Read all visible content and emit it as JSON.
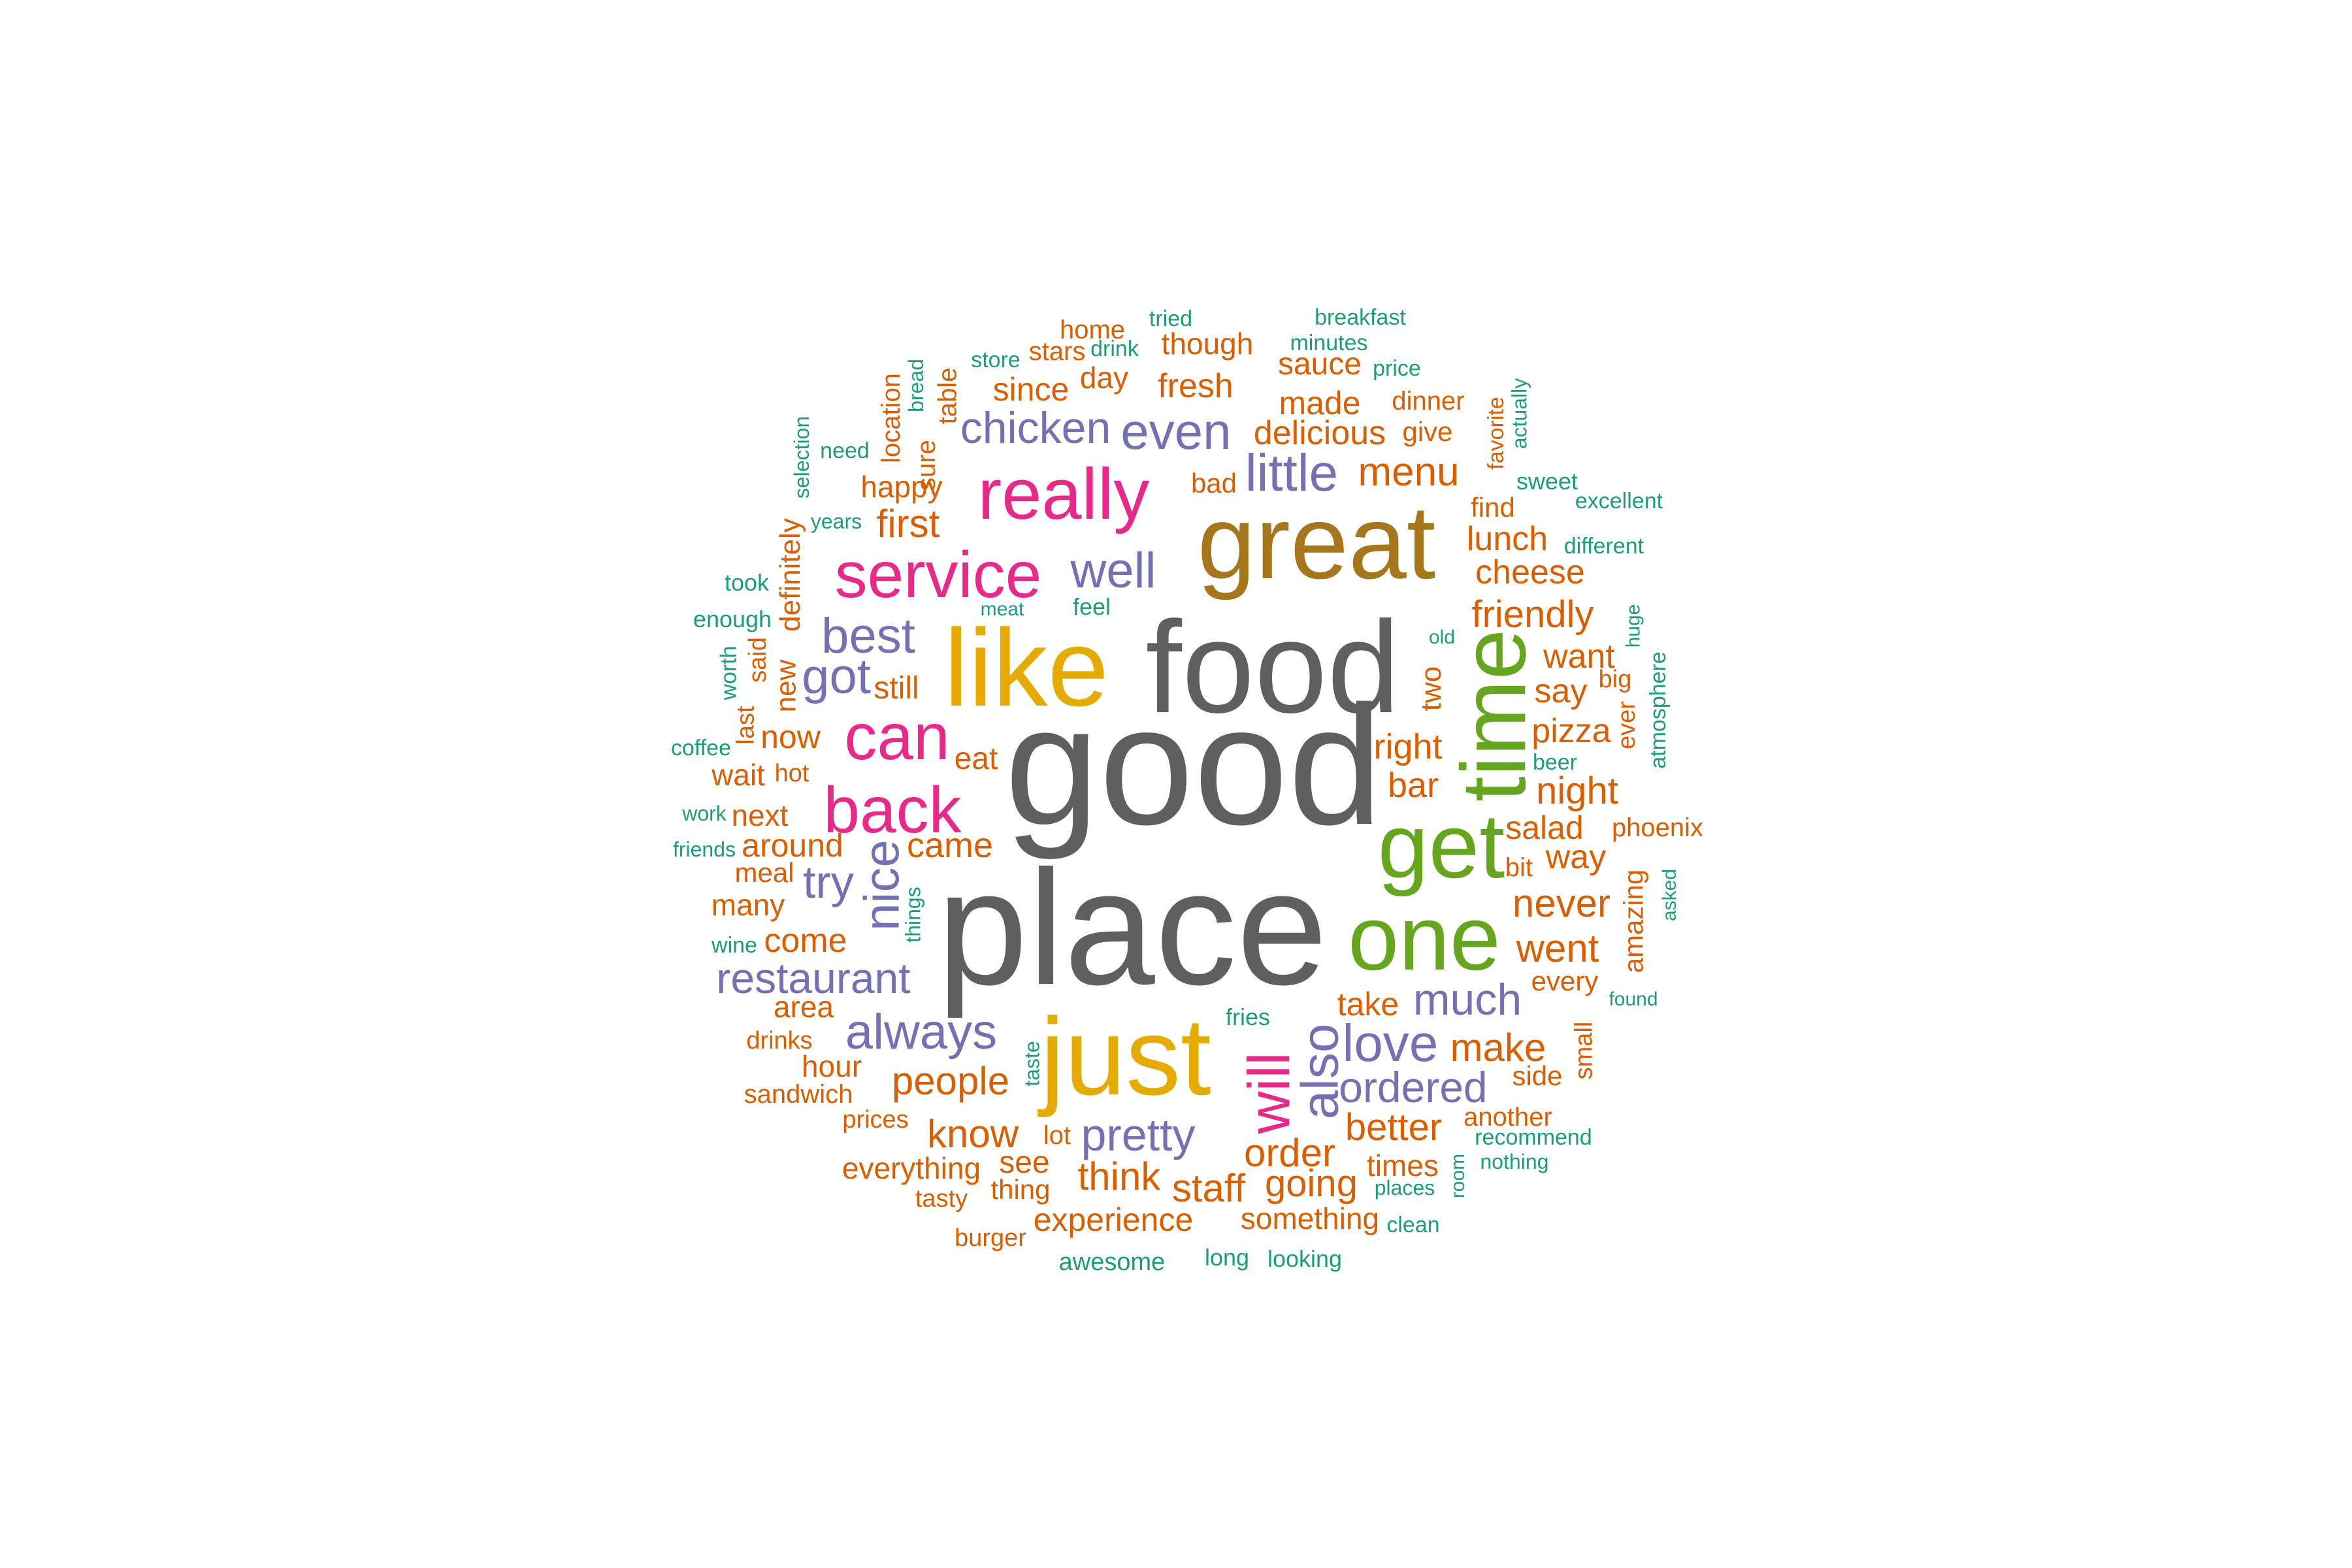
{
  "colors": {
    "gray": "#5f5f5f",
    "olive": "#a6761d",
    "gold": "#e6ab02",
    "pink": "#e7298a",
    "green": "#66a61e",
    "purple": "#7570b3",
    "orange": "#d95f02",
    "teal": "#1b9e77"
  },
  "words": [
    {
      "text": "good",
      "color": "gray"
    },
    {
      "text": "place",
      "color": "gray"
    },
    {
      "text": "food",
      "color": "gray"
    },
    {
      "text": "great",
      "color": "olive"
    },
    {
      "text": "like",
      "color": "gold"
    },
    {
      "text": "just",
      "color": "gold"
    },
    {
      "text": "really",
      "color": "pink"
    },
    {
      "text": "service",
      "color": "pink"
    },
    {
      "text": "can",
      "color": "pink"
    },
    {
      "text": "back",
      "color": "pink"
    },
    {
      "text": "will",
      "color": "pink"
    },
    {
      "text": "get",
      "color": "green"
    },
    {
      "text": "time",
      "color": "green"
    },
    {
      "text": "one",
      "color": "green"
    },
    {
      "text": "chicken",
      "color": "purple"
    },
    {
      "text": "even",
      "color": "purple"
    },
    {
      "text": "little",
      "color": "purple"
    },
    {
      "text": "well",
      "color": "purple"
    },
    {
      "text": "best",
      "color": "purple"
    },
    {
      "text": "got",
      "color": "purple"
    },
    {
      "text": "nice",
      "color": "purple"
    },
    {
      "text": "try",
      "color": "purple"
    },
    {
      "text": "restaurant",
      "color": "purple"
    },
    {
      "text": "always",
      "color": "purple"
    },
    {
      "text": "also",
      "color": "purple"
    },
    {
      "text": "love",
      "color": "purple"
    },
    {
      "text": "much",
      "color": "purple"
    },
    {
      "text": "ordered",
      "color": "purple"
    },
    {
      "text": "pretty",
      "color": "purple"
    },
    {
      "text": "home",
      "color": "orange"
    },
    {
      "text": "though",
      "color": "orange"
    },
    {
      "text": "stars",
      "color": "orange"
    },
    {
      "text": "day",
      "color": "orange"
    },
    {
      "text": "since",
      "color": "orange"
    },
    {
      "text": "fresh",
      "color": "orange"
    },
    {
      "text": "sauce",
      "color": "orange"
    },
    {
      "text": "made",
      "color": "orange"
    },
    {
      "text": "dinner",
      "color": "orange"
    },
    {
      "text": "give",
      "color": "orange"
    },
    {
      "text": "delicious",
      "color": "orange"
    },
    {
      "text": "menu",
      "color": "orange"
    },
    {
      "text": "bad",
      "color": "orange"
    },
    {
      "text": "happy",
      "color": "orange"
    },
    {
      "text": "first",
      "color": "orange"
    },
    {
      "text": "find",
      "color": "orange"
    },
    {
      "text": "lunch",
      "color": "orange"
    },
    {
      "text": "cheese",
      "color": "orange"
    },
    {
      "text": "friendly",
      "color": "orange"
    },
    {
      "text": "want",
      "color": "orange"
    },
    {
      "text": "say",
      "color": "orange"
    },
    {
      "text": "pizza",
      "color": "orange"
    },
    {
      "text": "night",
      "color": "orange"
    },
    {
      "text": "salad",
      "color": "orange"
    },
    {
      "text": "way",
      "color": "orange"
    },
    {
      "text": "bit",
      "color": "orange"
    },
    {
      "text": "never",
      "color": "orange"
    },
    {
      "text": "went",
      "color": "orange"
    },
    {
      "text": "every",
      "color": "orange"
    },
    {
      "text": "make",
      "color": "orange"
    },
    {
      "text": "side",
      "color": "orange"
    },
    {
      "text": "another",
      "color": "orange"
    },
    {
      "text": "better",
      "color": "orange"
    },
    {
      "text": "times",
      "color": "orange"
    },
    {
      "text": "take",
      "color": "orange"
    },
    {
      "text": "order",
      "color": "orange"
    },
    {
      "text": "going",
      "color": "orange"
    },
    {
      "text": "something",
      "color": "orange"
    },
    {
      "text": "staff",
      "color": "orange"
    },
    {
      "text": "think",
      "color": "orange"
    },
    {
      "text": "experience",
      "color": "orange"
    },
    {
      "text": "know",
      "color": "orange"
    },
    {
      "text": "see",
      "color": "orange"
    },
    {
      "text": "thing",
      "color": "orange"
    },
    {
      "text": "lot",
      "color": "orange"
    },
    {
      "text": "people",
      "color": "orange"
    },
    {
      "text": "everything",
      "color": "orange"
    },
    {
      "text": "tasty",
      "color": "orange"
    },
    {
      "text": "burger",
      "color": "orange"
    },
    {
      "text": "prices",
      "color": "orange"
    },
    {
      "text": "sandwich",
      "color": "orange"
    },
    {
      "text": "hour",
      "color": "orange"
    },
    {
      "text": "drinks",
      "color": "orange"
    },
    {
      "text": "area",
      "color": "orange"
    },
    {
      "text": "come",
      "color": "orange"
    },
    {
      "text": "many",
      "color": "orange"
    },
    {
      "text": "meal",
      "color": "orange"
    },
    {
      "text": "around",
      "color": "orange"
    },
    {
      "text": "next",
      "color": "orange"
    },
    {
      "text": "came",
      "color": "orange"
    },
    {
      "text": "eat",
      "color": "orange"
    },
    {
      "text": "wait",
      "color": "orange"
    },
    {
      "text": "hot",
      "color": "orange"
    },
    {
      "text": "now",
      "color": "orange"
    },
    {
      "text": "still",
      "color": "orange"
    },
    {
      "text": "right",
      "color": "orange"
    },
    {
      "text": "bar",
      "color": "orange"
    },
    {
      "text": "phoenix",
      "color": "orange"
    },
    {
      "text": "location",
      "color": "orange"
    },
    {
      "text": "sure",
      "color": "orange"
    },
    {
      "text": "table",
      "color": "orange"
    },
    {
      "text": "favorite",
      "color": "orange"
    },
    {
      "text": "definitely",
      "color": "orange"
    },
    {
      "text": "said",
      "color": "orange"
    },
    {
      "text": "new",
      "color": "orange"
    },
    {
      "text": "last",
      "color": "orange"
    },
    {
      "text": "two",
      "color": "orange"
    },
    {
      "text": "big",
      "color": "orange"
    },
    {
      "text": "ever",
      "color": "orange"
    },
    {
      "text": "amazing",
      "color": "orange"
    },
    {
      "text": "small",
      "color": "orange"
    },
    {
      "text": "breakfast",
      "color": "teal"
    },
    {
      "text": "tried",
      "color": "teal"
    },
    {
      "text": "minutes",
      "color": "teal"
    },
    {
      "text": "drink",
      "color": "teal"
    },
    {
      "text": "store",
      "color": "teal"
    },
    {
      "text": "price",
      "color": "teal"
    },
    {
      "text": "bread",
      "color": "teal"
    },
    {
      "text": "actually",
      "color": "teal"
    },
    {
      "text": "sweet",
      "color": "teal"
    },
    {
      "text": "excellent",
      "color": "teal"
    },
    {
      "text": "need",
      "color": "teal"
    },
    {
      "text": "selection",
      "color": "teal"
    },
    {
      "text": "years",
      "color": "teal"
    },
    {
      "text": "different",
      "color": "teal"
    },
    {
      "text": "took",
      "color": "teal"
    },
    {
      "text": "meat",
      "color": "teal"
    },
    {
      "text": "feel",
      "color": "teal"
    },
    {
      "text": "enough",
      "color": "teal"
    },
    {
      "text": "old",
      "color": "teal"
    },
    {
      "text": "huge",
      "color": "teal"
    },
    {
      "text": "worth",
      "color": "teal"
    },
    {
      "text": "atmosphere",
      "color": "teal"
    },
    {
      "text": "coffee",
      "color": "teal"
    },
    {
      "text": "beer",
      "color": "teal"
    },
    {
      "text": "work",
      "color": "teal"
    },
    {
      "text": "friends",
      "color": "teal"
    },
    {
      "text": "things",
      "color": "teal"
    },
    {
      "text": "asked",
      "color": "teal"
    },
    {
      "text": "wine",
      "color": "teal"
    },
    {
      "text": "found",
      "color": "teal"
    },
    {
      "text": "fries",
      "color": "teal"
    },
    {
      "text": "taste",
      "color": "teal"
    },
    {
      "text": "recommend",
      "color": "teal"
    },
    {
      "text": "nothing",
      "color": "teal"
    },
    {
      "text": "room",
      "color": "teal"
    },
    {
      "text": "places",
      "color": "teal"
    },
    {
      "text": "clean",
      "color": "teal"
    },
    {
      "text": "awesome",
      "color": "teal"
    },
    {
      "text": "long",
      "color": "teal"
    },
    {
      "text": "looking",
      "color": "teal"
    }
  ]
}
